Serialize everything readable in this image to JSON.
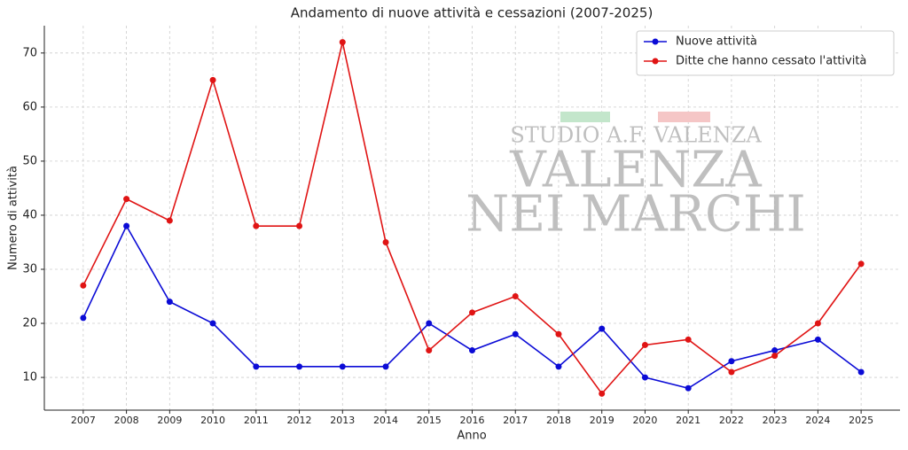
{
  "chart_data": {
    "type": "line",
    "title": "Andamento di nuove attività e cessazioni (2007-2025)",
    "x_label": "Anno",
    "y_label": "Numero di attività",
    "x": [
      2007,
      2008,
      2009,
      2010,
      2011,
      2012,
      2013,
      2014,
      2015,
      2016,
      2017,
      2018,
      2019,
      2020,
      2021,
      2022,
      2023,
      2024,
      2025
    ],
    "xlim": [
      2006.1,
      2025.9
    ],
    "xticks": [
      2007,
      2008,
      2009,
      2010,
      2011,
      2012,
      2013,
      2014,
      2015,
      2016,
      2017,
      2018,
      2019,
      2020,
      2021,
      2022,
      2023,
      2024,
      2025
    ],
    "ylim": [
      3.95,
      75.05
    ],
    "yticks": [
      10,
      20,
      30,
      40,
      50,
      60,
      70
    ],
    "grid": true,
    "legend": "upper right",
    "series": [
      {
        "name": "Nuove attività",
        "color": "#0b0bd6",
        "values": [
          21,
          38,
          24,
          20,
          12,
          12,
          12,
          12,
          20,
          15,
          18,
          12,
          19,
          10,
          8,
          13,
          15,
          17,
          11
        ]
      },
      {
        "name": "Ditte che hanno cessato l'attività",
        "color": "#e01414",
        "values": [
          27,
          43,
          39,
          65,
          38,
          38,
          72,
          35,
          15,
          22,
          25,
          18,
          7,
          16,
          17,
          11,
          14,
          20,
          31
        ]
      }
    ],
    "watermark": [
      "STUDIO A.F. VALENZA",
      "VALENZA",
      "NEI MARCHI"
    ]
  }
}
